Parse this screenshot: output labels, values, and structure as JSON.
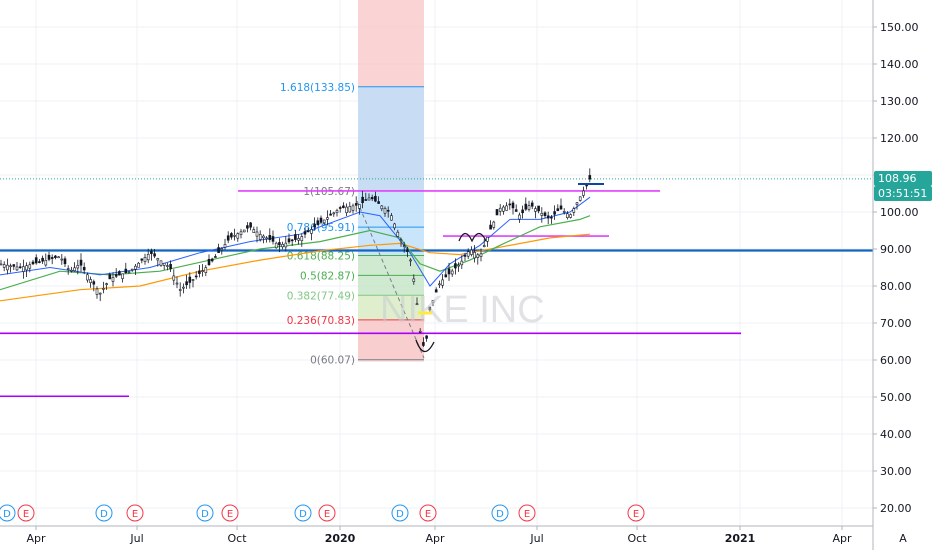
{
  "chart_data": {
    "type": "candlestick",
    "symbol_watermark": "NIKE INC",
    "price_axis": {
      "ticks": [
        "150.00",
        "140.00",
        "130.00",
        "120.00",
        "110.00",
        "100.00",
        "90.00",
        "80.00",
        "70.00",
        "60.00",
        "50.00",
        "40.00",
        "30.00",
        "20.00"
      ],
      "ylim": [
        16,
        158
      ]
    },
    "time_axis": {
      "ticks": [
        "Apr",
        "Jul",
        "Oct",
        "2020",
        "Apr",
        "Jul",
        "Oct",
        "2021",
        "Apr"
      ],
      "bold": [
        "2020",
        "2021"
      ]
    },
    "last_price": {
      "value": 108.96,
      "label": "108.96",
      "countdown": "03:51:51",
      "color": "#26a69a",
      "countdown_color": "#26a69a"
    },
    "fibonacci": {
      "levels": [
        {
          "label": "1.618(133.85)",
          "ratio": 1.618,
          "price": 133.85,
          "color": "#2196f3"
        },
        {
          "label": "1(105.67)",
          "ratio": 1,
          "price": 105.67,
          "color": "#787b86"
        },
        {
          "label": "0.786(95.91)",
          "ratio": 0.786,
          "price": 95.91,
          "color": "#2196f3"
        },
        {
          "label": "0.618(88.25)",
          "ratio": 0.618,
          "price": 88.25,
          "color": "#4caf50"
        },
        {
          "label": "0.5(82.87)",
          "ratio": 0.5,
          "price": 82.87,
          "color": "#4caf50"
        },
        {
          "label": "0.382(77.49)",
          "ratio": 0.382,
          "price": 77.49,
          "color": "#81c784"
        },
        {
          "label": "0.236(70.83)",
          "ratio": 0.236,
          "price": 70.83,
          "color": "#f23645"
        },
        {
          "label": "0(60.07)",
          "ratio": 0,
          "price": 60.07,
          "color": "#787b86"
        }
      ]
    },
    "horizontal_lines": [
      {
        "price": 89.6,
        "color": "#1565c0"
      },
      {
        "price": 105.7,
        "color": "#e040fb"
      },
      {
        "price": 93.5,
        "color": "#e040fb"
      },
      {
        "price": 67.2,
        "color": "#aa00ff"
      },
      {
        "price": 50.2,
        "color": "#aa00ff"
      }
    ],
    "price_series": [
      [
        0,
        86
      ],
      [
        20,
        85
      ],
      [
        40,
        86.5
      ],
      [
        60,
        88
      ],
      [
        70,
        84
      ],
      [
        80,
        86
      ],
      [
        100,
        78
      ],
      [
        110,
        82
      ],
      [
        130,
        84
      ],
      [
        150,
        89
      ],
      [
        170,
        85
      ],
      [
        180,
        79
      ],
      [
        190,
        81
      ],
      [
        210,
        86
      ],
      [
        230,
        93
      ],
      [
        250,
        96
      ],
      [
        260,
        94
      ],
      [
        280,
        91
      ],
      [
        300,
        93
      ],
      [
        320,
        97
      ],
      [
        340,
        101
      ],
      [
        360,
        102
      ],
      [
        370,
        104
      ],
      [
        390,
        100
      ],
      [
        400,
        93
      ],
      [
        410,
        88
      ],
      [
        415,
        80
      ],
      [
        420,
        68
      ],
      [
        425,
        62
      ],
      [
        430,
        74
      ],
      [
        440,
        81
      ],
      [
        460,
        86
      ],
      [
        470,
        90
      ],
      [
        480,
        88
      ],
      [
        490,
        95
      ],
      [
        500,
        101
      ],
      [
        510,
        102
      ],
      [
        520,
        99
      ],
      [
        530,
        102
      ],
      [
        540,
        100
      ],
      [
        550,
        98
      ],
      [
        560,
        101
      ],
      [
        570,
        99
      ],
      [
        580,
        104
      ],
      [
        590,
        108.96
      ]
    ],
    "ma_fast": [
      [
        0,
        83
      ],
      [
        50,
        85
      ],
      [
        100,
        83
      ],
      [
        150,
        85
      ],
      [
        200,
        89
      ],
      [
        250,
        92
      ],
      [
        300,
        94
      ],
      [
        360,
        100
      ],
      [
        380,
        99
      ],
      [
        410,
        89
      ],
      [
        430,
        80
      ],
      [
        450,
        86
      ],
      [
        480,
        91
      ],
      [
        510,
        98
      ],
      [
        540,
        98
      ],
      [
        570,
        100
      ],
      [
        590,
        104
      ]
    ],
    "ma_mid": [
      [
        0,
        79
      ],
      [
        60,
        84
      ],
      [
        110,
        83
      ],
      [
        160,
        84
      ],
      [
        210,
        87
      ],
      [
        260,
        90
      ],
      [
        320,
        92
      ],
      [
        370,
        95
      ],
      [
        400,
        93
      ],
      [
        420,
        86
      ],
      [
        440,
        84
      ],
      [
        470,
        87
      ],
      [
        500,
        91
      ],
      [
        540,
        96
      ],
      [
        580,
        98
      ],
      [
        590,
        99
      ]
    ],
    "ma_slow": [
      [
        0,
        76
      ],
      [
        80,
        79
      ],
      [
        140,
        80
      ],
      [
        200,
        84
      ],
      [
        260,
        87
      ],
      [
        320,
        89.5
      ],
      [
        370,
        91
      ],
      [
        400,
        91.5
      ],
      [
        430,
        89
      ],
      [
        460,
        88.5
      ],
      [
        500,
        90.5
      ],
      [
        550,
        93
      ],
      [
        590,
        94
      ]
    ],
    "events": [
      {
        "type": "D",
        "x": 7
      },
      {
        "type": "E",
        "x": 26
      },
      {
        "type": "D",
        "x": 104
      },
      {
        "type": "E",
        "x": 135
      },
      {
        "type": "D",
        "x": 205
      },
      {
        "type": "E",
        "x": 230
      },
      {
        "type": "D",
        "x": 303
      },
      {
        "type": "E",
        "x": 327
      },
      {
        "type": "D",
        "x": 400
      },
      {
        "type": "E",
        "x": 428
      },
      {
        "type": "D",
        "x": 500
      },
      {
        "type": "E",
        "x": 527
      },
      {
        "type": "E",
        "x": 636
      }
    ],
    "axis_corner_label": "A"
  }
}
